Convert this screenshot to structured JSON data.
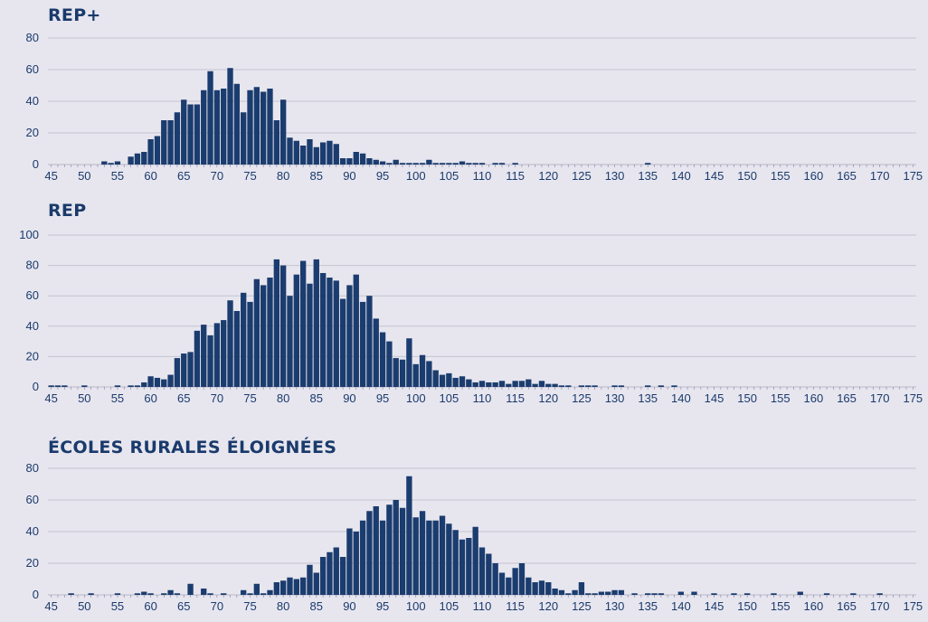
{
  "chart_data": [
    {
      "type": "bar",
      "title": "REP+",
      "color": "#1b3c6e",
      "ylim": [
        0,
        80
      ],
      "yticks": [
        0,
        20,
        40,
        60,
        80
      ],
      "xlim": [
        45,
        175
      ],
      "xticks": [
        45,
        50,
        55,
        60,
        65,
        70,
        75,
        80,
        85,
        90,
        95,
        100,
        105,
        110,
        115,
        120,
        125,
        130,
        135,
        140,
        145,
        150,
        155,
        160,
        165,
        170,
        175
      ],
      "grid": true,
      "x": [
        53,
        54,
        55,
        57,
        58,
        59,
        60,
        61,
        62,
        63,
        64,
        65,
        66,
        67,
        68,
        69,
        70,
        71,
        72,
        73,
        74,
        75,
        76,
        77,
        78,
        79,
        80,
        81,
        82,
        83,
        84,
        85,
        86,
        87,
        88,
        89,
        90,
        91,
        92,
        93,
        94,
        95,
        96,
        97,
        98,
        99,
        100,
        101,
        102,
        103,
        104,
        105,
        106,
        107,
        108,
        109,
        110,
        112,
        113,
        115,
        135
      ],
      "values": [
        2,
        1,
        2,
        5,
        7,
        8,
        16,
        18,
        28,
        28,
        33,
        41,
        38,
        38,
        47,
        59,
        47,
        48,
        61,
        51,
        33,
        47,
        49,
        46,
        48,
        28,
        41,
        17,
        15,
        12,
        16,
        11,
        14,
        15,
        13,
        4,
        4,
        8,
        7,
        4,
        3,
        2,
        1,
        3,
        1,
        1,
        1,
        1,
        3,
        1,
        1,
        1,
        1,
        2,
        1,
        1,
        1,
        1,
        1,
        1,
        1
      ]
    },
    {
      "type": "bar",
      "title": "REP",
      "color": "#1b3c6e",
      "ylim": [
        0,
        100
      ],
      "yticks": [
        0,
        20,
        40,
        60,
        80,
        100
      ],
      "xlim": [
        45,
        175
      ],
      "xticks": [
        45,
        50,
        55,
        60,
        65,
        70,
        75,
        80,
        85,
        90,
        95,
        100,
        105,
        110,
        115,
        120,
        125,
        130,
        135,
        140,
        145,
        150,
        155,
        160,
        165,
        170,
        175
      ],
      "grid": true,
      "x": [
        45,
        46,
        47,
        50,
        55,
        57,
        58,
        59,
        60,
        61,
        62,
        63,
        64,
        65,
        66,
        67,
        68,
        69,
        70,
        71,
        72,
        73,
        74,
        75,
        76,
        77,
        78,
        79,
        80,
        81,
        82,
        83,
        84,
        85,
        86,
        87,
        88,
        89,
        90,
        91,
        92,
        93,
        94,
        95,
        96,
        97,
        98,
        99,
        100,
        101,
        102,
        103,
        104,
        105,
        106,
        107,
        108,
        109,
        110,
        111,
        112,
        113,
        114,
        115,
        116,
        117,
        118,
        119,
        120,
        121,
        122,
        123,
        125,
        126,
        127,
        130,
        131,
        135,
        137,
        139
      ],
      "values": [
        1,
        1,
        1,
        1,
        1,
        1,
        1,
        3,
        7,
        6,
        5,
        8,
        19,
        22,
        23,
        37,
        41,
        34,
        42,
        44,
        57,
        50,
        62,
        56,
        71,
        67,
        72,
        84,
        80,
        60,
        74,
        83,
        68,
        84,
        75,
        72,
        70,
        58,
        67,
        74,
        56,
        60,
        45,
        36,
        30,
        19,
        18,
        32,
        15,
        21,
        17,
        11,
        8,
        9,
        6,
        7,
        5,
        3,
        4,
        3,
        3,
        4,
        2,
        4,
        4,
        5,
        2,
        4,
        2,
        2,
        1,
        1,
        1,
        1,
        1,
        1,
        1,
        1,
        1,
        1
      ]
    },
    {
      "type": "bar",
      "title": "ÉCOLES RURALES ÉLOIGNÉES",
      "color": "#1b3c6e",
      "ylim": [
        0,
        80
      ],
      "yticks": [
        0,
        20,
        40,
        60,
        80
      ],
      "xlim": [
        45,
        175
      ],
      "xticks": [
        45,
        50,
        55,
        60,
        65,
        70,
        75,
        80,
        85,
        90,
        95,
        100,
        105,
        110,
        115,
        120,
        125,
        130,
        135,
        140,
        145,
        150,
        155,
        160,
        165,
        170,
        175
      ],
      "grid": true,
      "x": [
        48,
        51,
        55,
        58,
        59,
        60,
        62,
        63,
        64,
        66,
        68,
        69,
        71,
        74,
        75,
        76,
        77,
        78,
        79,
        80,
        81,
        82,
        83,
        84,
        85,
        86,
        87,
        88,
        89,
        90,
        91,
        92,
        93,
        94,
        95,
        96,
        97,
        98,
        99,
        100,
        101,
        102,
        103,
        104,
        105,
        106,
        107,
        108,
        109,
        110,
        111,
        112,
        113,
        114,
        115,
        116,
        117,
        118,
        119,
        120,
        121,
        122,
        123,
        124,
        125,
        126,
        127,
        128,
        129,
        130,
        131,
        133,
        135,
        136,
        137,
        140,
        142,
        145,
        148,
        150,
        154,
        158,
        162,
        166,
        170
      ],
      "values": [
        1,
        1,
        1,
        1,
        2,
        1,
        1,
        3,
        1,
        7,
        4,
        1,
        1,
        3,
        1,
        7,
        1,
        3,
        8,
        9,
        11,
        10,
        11,
        19,
        14,
        24,
        27,
        30,
        24,
        42,
        40,
        47,
        53,
        56,
        47,
        57,
        60,
        55,
        75,
        49,
        53,
        47,
        47,
        50,
        45,
        41,
        35,
        36,
        43,
        30,
        26,
        20,
        14,
        11,
        17,
        20,
        11,
        8,
        9,
        8,
        4,
        3,
        1,
        3,
        8,
        1,
        1,
        2,
        2,
        3,
        3,
        1,
        1,
        1,
        1,
        2,
        2,
        1,
        1,
        1,
        1,
        2,
        1,
        1,
        1
      ]
    }
  ]
}
